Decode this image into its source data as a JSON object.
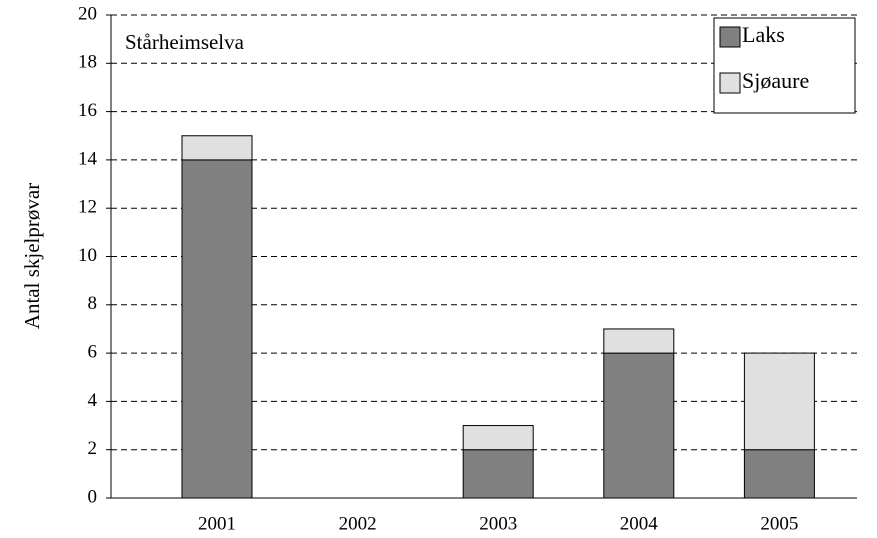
{
  "chart_data": {
    "type": "stacked-bar",
    "annotation": "Stårheimselva",
    "ylabel": "Antal skjelprøvar",
    "categories": [
      "2001",
      "2002",
      "2003",
      "2004",
      "2005"
    ],
    "series": [
      {
        "name": "Laks",
        "color": "#808080",
        "values": [
          14,
          0,
          2,
          6,
          2
        ]
      },
      {
        "name": "Sjøaure",
        "color": "#e0e0e0",
        "values": [
          1,
          0,
          1,
          1,
          4
        ]
      }
    ],
    "ylim": [
      0,
      20
    ],
    "yticks": [
      0,
      2,
      4,
      6,
      8,
      10,
      12,
      14,
      16,
      18,
      20
    ],
    "grid": true,
    "legend": "upper right"
  }
}
